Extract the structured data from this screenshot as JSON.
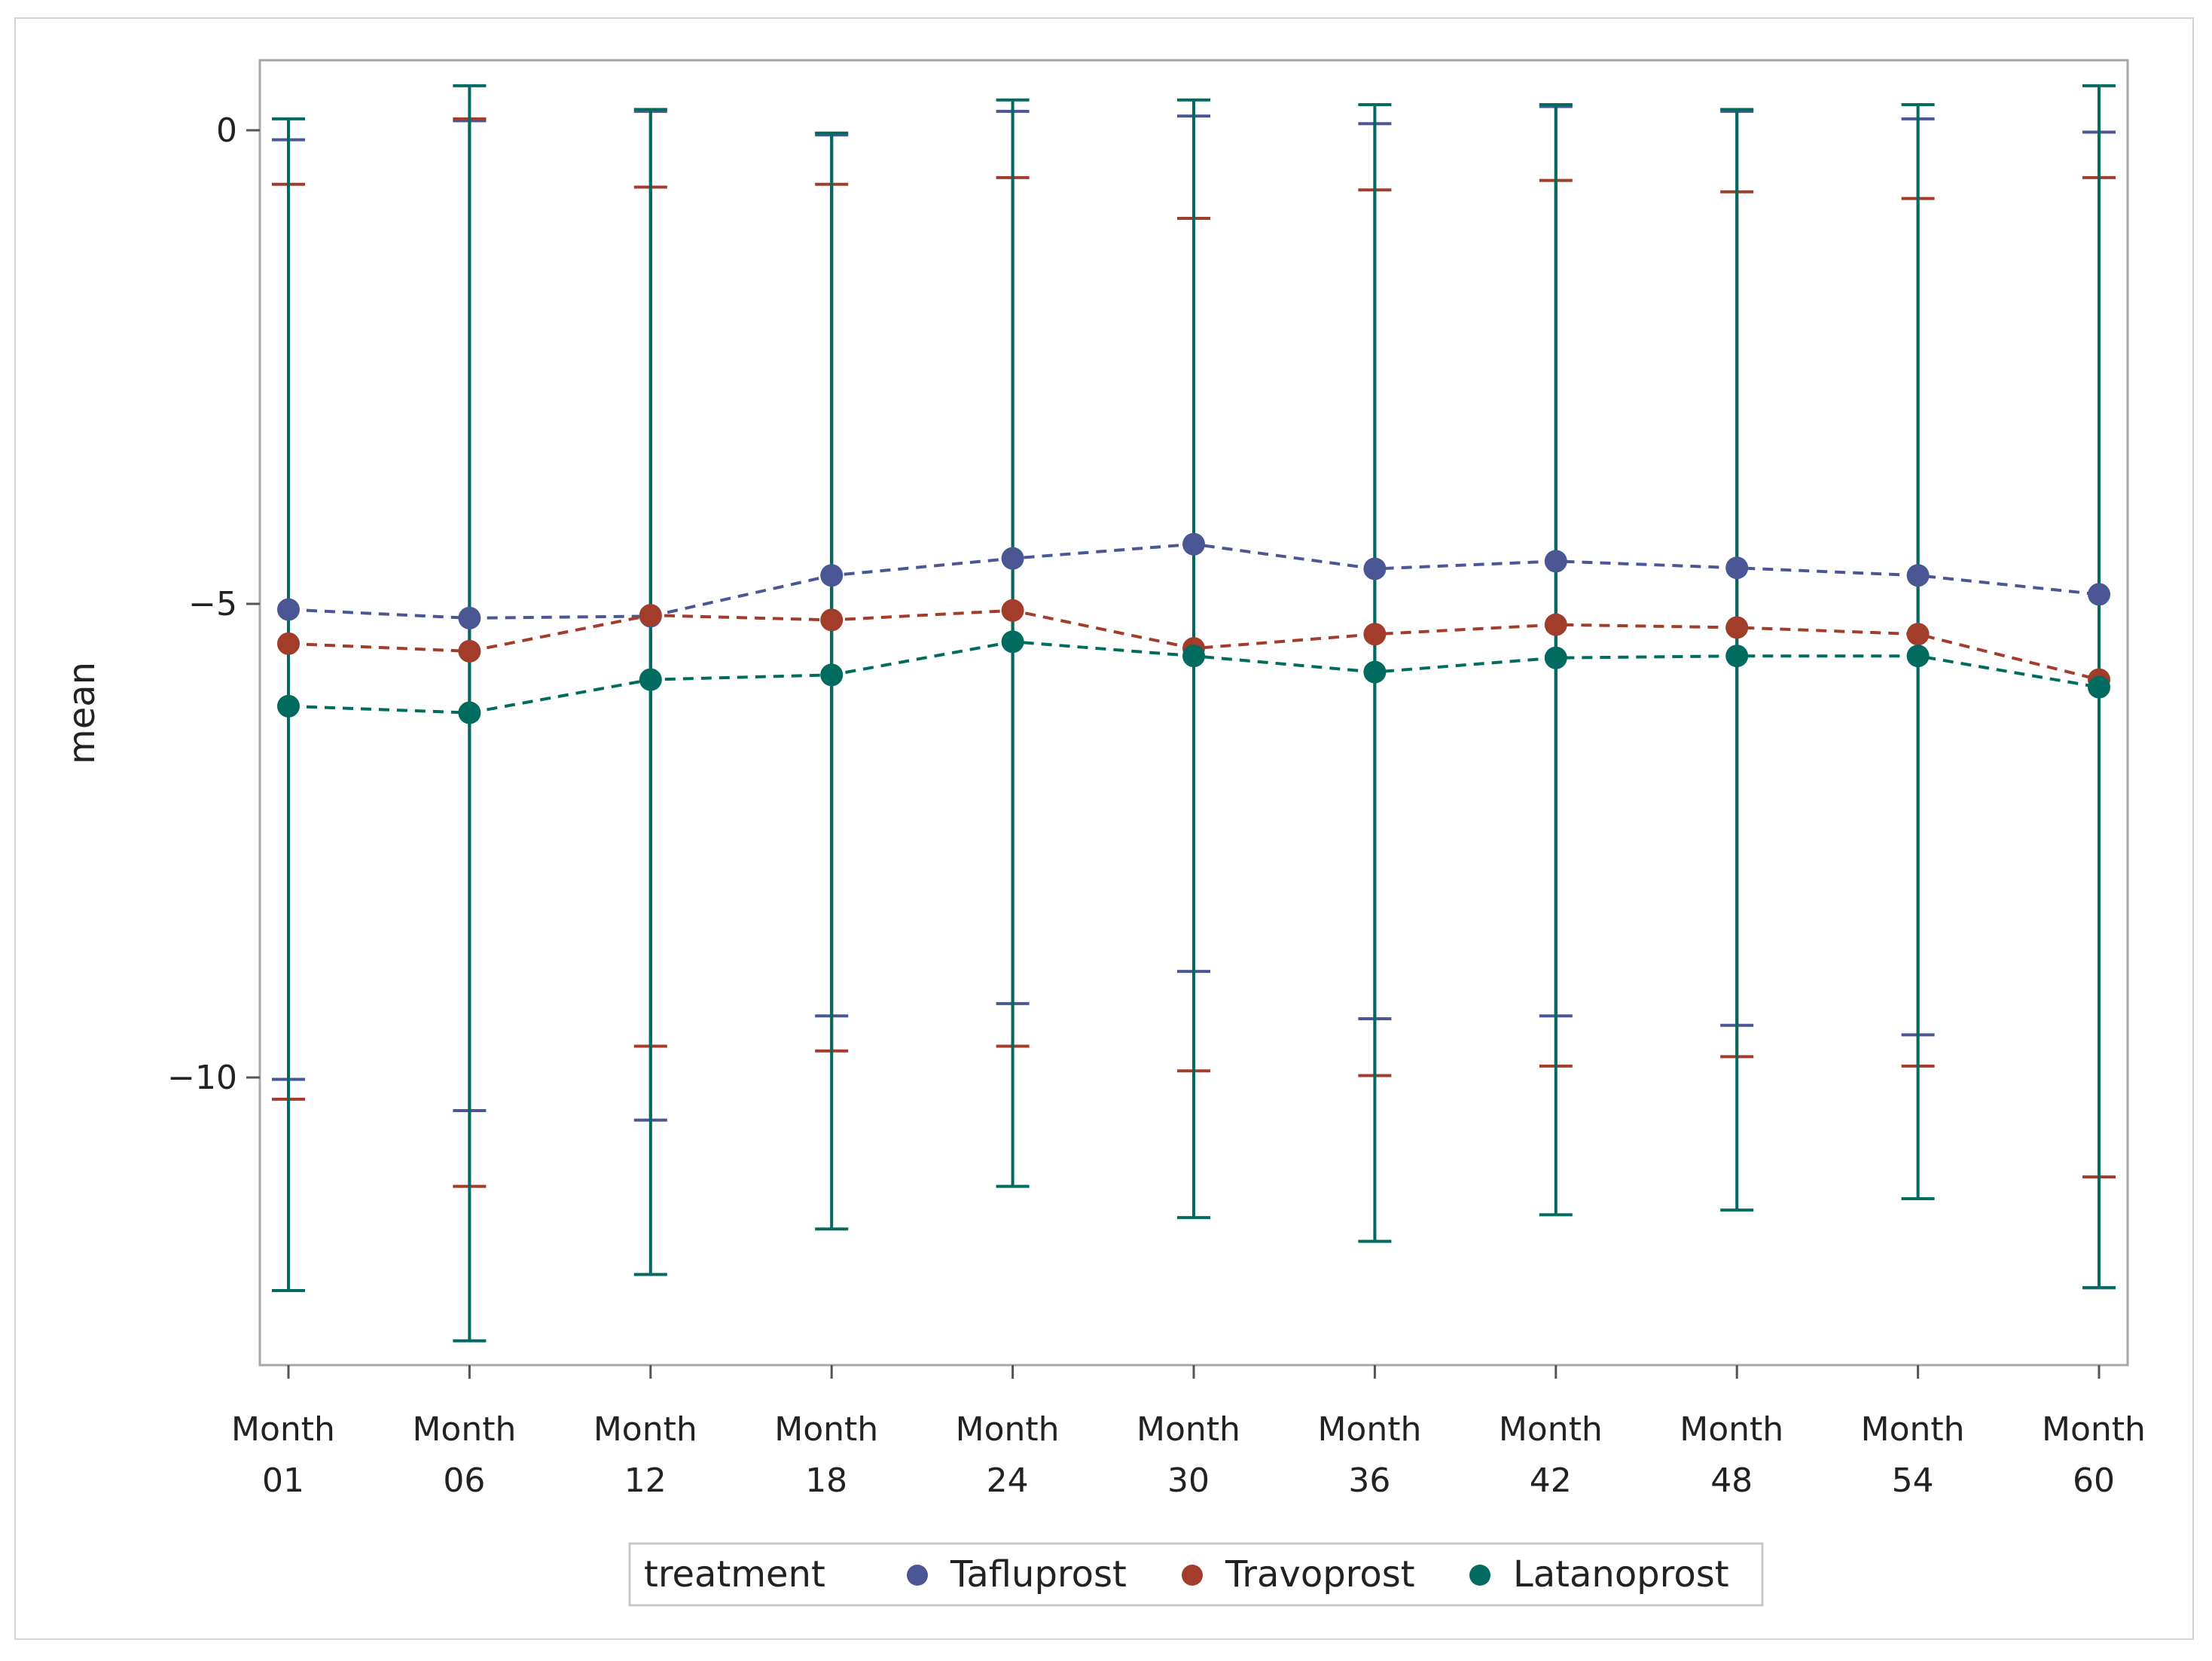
{
  "chart_data": {
    "type": "line",
    "title": "",
    "xlabel": "",
    "ylabel": "mean",
    "ylim": [
      -13,
      0.7
    ],
    "yticks": [
      0,
      -5,
      -10
    ],
    "ytick_labels": [
      "0",
      "−5",
      "−10"
    ],
    "categories": [
      [
        "Month",
        "01"
      ],
      [
        "Month",
        "06"
      ],
      [
        "Month",
        "12"
      ],
      [
        "Month",
        "18"
      ],
      [
        "Month",
        "24"
      ],
      [
        "Month",
        "30"
      ],
      [
        "Month",
        "36"
      ],
      [
        "Month",
        "42"
      ],
      [
        "Month",
        "48"
      ],
      [
        "Month",
        "54"
      ],
      [
        "Month",
        "60"
      ]
    ],
    "legend": {
      "title": "treatment",
      "placement": "bottom"
    },
    "series": [
      {
        "name": "Tafluprost",
        "color": "#4a5794",
        "mean": [
          -5.06,
          -5.15,
          -5.13,
          -4.7,
          -4.52,
          -4.37,
          -4.63,
          -4.55,
          -4.62,
          -4.7,
          -4.9
        ],
        "upper": [
          -0.1,
          0.1,
          0.2,
          -0.05,
          0.2,
          0.15,
          0.07,
          0.25,
          0.2,
          0.12,
          -0.02
        ],
        "lower": [
          -10.02,
          -10.35,
          -10.45,
          -9.35,
          -9.22,
          -8.88,
          -9.38,
          -9.35,
          -9.45,
          -9.55,
          -12.22
        ]
      },
      {
        "name": "Travoprost",
        "color": "#a23d2b",
        "mean": [
          -5.42,
          -5.5,
          -5.12,
          -5.17,
          -5.07,
          -5.47,
          -5.32,
          -5.22,
          -5.25,
          -5.32,
          -5.8
        ],
        "upper": [
          -0.57,
          0.12,
          -0.6,
          -0.57,
          -0.5,
          -0.93,
          -0.63,
          -0.53,
          -0.65,
          -0.72,
          -0.5
        ],
        "lower": [
          -10.23,
          -11.15,
          -9.67,
          -9.72,
          -9.67,
          -9.93,
          -9.98,
          -9.88,
          -9.78,
          -9.88,
          -11.05
        ]
      },
      {
        "name": "Latanoprost",
        "color": "#006b5e",
        "mean": [
          -6.08,
          -6.15,
          -5.8,
          -5.75,
          -5.4,
          -5.55,
          -5.72,
          -5.57,
          -5.55,
          -5.55,
          -5.88
        ],
        "upper": [
          0.12,
          0.47,
          0.22,
          -0.03,
          0.32,
          0.32,
          0.27,
          0.27,
          0.22,
          0.27,
          0.47
        ],
        "lower": [
          -12.25,
          -12.78,
          -12.08,
          -11.6,
          -11.15,
          -11.48,
          -11.73,
          -11.45,
          -11.4,
          -11.28,
          -12.22
        ]
      }
    ]
  }
}
